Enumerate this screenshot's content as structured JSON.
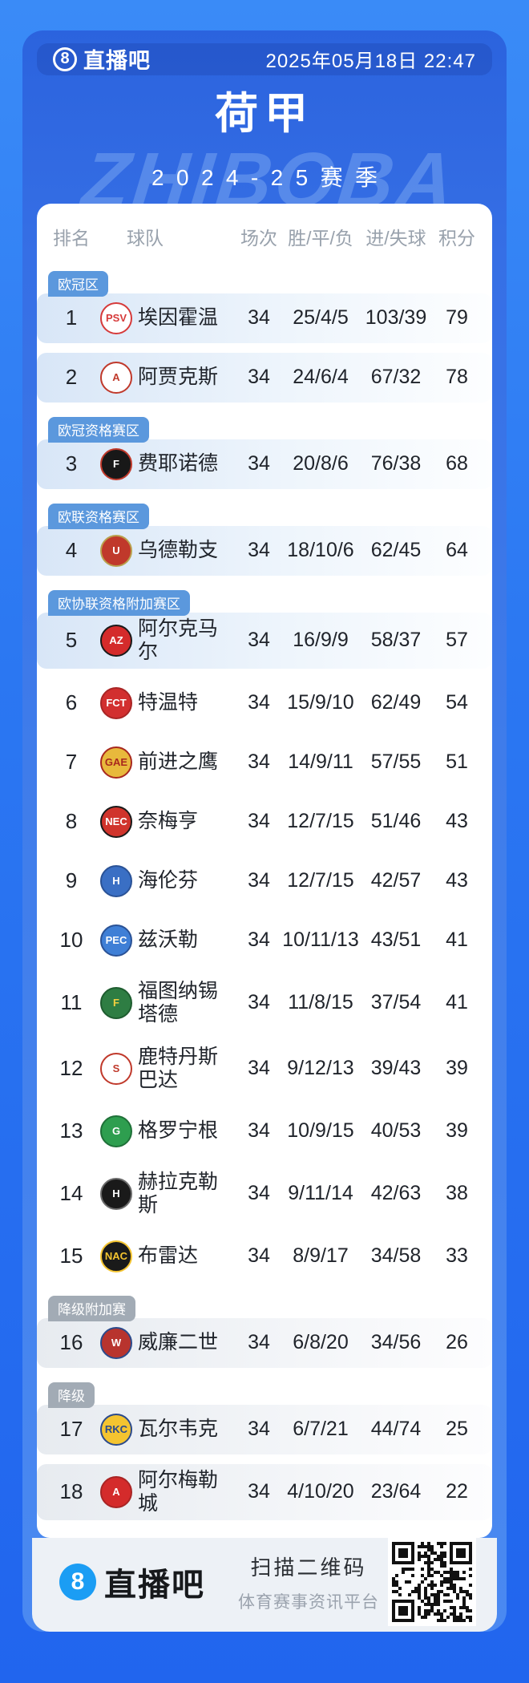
{
  "header": {
    "logo_badge": "8",
    "logo_text": "直播吧",
    "datetime": "2025年05月18日 22:47"
  },
  "title": "荷甲",
  "season": "2024-25赛季",
  "watermark": "ZHIBOBA",
  "table": {
    "columns": [
      "排名",
      "球队",
      "场次",
      "胜/平/负",
      "进/失球",
      "积分"
    ],
    "rows": [
      {
        "rank": "1",
        "name": "埃因霍温",
        "played": "34",
        "wdl": "25/4/5",
        "goals": "103/39",
        "points": "79",
        "zone": {
          "label": "欧冠区",
          "type": "europe"
        },
        "highlight": "blue",
        "logo": {
          "abbr": "PSV",
          "bg": "#ffffff",
          "color": "#d63a3a",
          "border": "#d63a3a"
        }
      },
      {
        "rank": "2",
        "name": "阿贾克斯",
        "played": "34",
        "wdl": "24/6/4",
        "goals": "67/32",
        "points": "78",
        "zone": null,
        "highlight": "blue",
        "logo": {
          "abbr": "A",
          "bg": "#ffffff",
          "color": "#c0392b",
          "border": "#c0392b"
        }
      },
      {
        "rank": "3",
        "name": "费耶诺德",
        "played": "34",
        "wdl": "20/8/6",
        "goals": "76/38",
        "points": "68",
        "zone": {
          "label": "欧冠资格赛区",
          "type": "europe"
        },
        "highlight": "blue",
        "logo": {
          "abbr": "F",
          "bg": "#181818",
          "color": "#ffffff",
          "border": "#c0392b"
        }
      },
      {
        "rank": "4",
        "name": "乌德勒支",
        "played": "34",
        "wdl": "18/10/6",
        "goals": "62/45",
        "points": "64",
        "zone": {
          "label": "欧联资格赛区",
          "type": "europe"
        },
        "highlight": "blue",
        "logo": {
          "abbr": "U",
          "bg": "#c0392b",
          "color": "#ffffff",
          "border": "#b9a04c"
        }
      },
      {
        "rank": "5",
        "name": "阿尔克马尔",
        "played": "34",
        "wdl": "16/9/9",
        "goals": "58/37",
        "points": "57",
        "zone": {
          "label": "欧协联资格附加赛区",
          "type": "europe"
        },
        "highlight": "blue",
        "logo": {
          "abbr": "AZ",
          "bg": "#d42b2b",
          "color": "#ffffff",
          "border": "#1a1a1a"
        }
      },
      {
        "rank": "6",
        "name": "特温特",
        "played": "34",
        "wdl": "15/9/10",
        "goals": "62/49",
        "points": "54",
        "zone": null,
        "highlight": null,
        "logo": {
          "abbr": "FCT",
          "bg": "#d22f2f",
          "color": "#ffffff",
          "border": "#a82525"
        }
      },
      {
        "rank": "7",
        "name": "前进之鹰",
        "played": "34",
        "wdl": "14/9/11",
        "goals": "57/55",
        "points": "51",
        "zone": null,
        "highlight": null,
        "logo": {
          "abbr": "GAE",
          "bg": "#e8b93c",
          "color": "#a8281e",
          "border": "#a8281e"
        }
      },
      {
        "rank": "8",
        "name": "奈梅亨",
        "played": "34",
        "wdl": "12/7/15",
        "goals": "51/46",
        "points": "43",
        "zone": null,
        "highlight": null,
        "logo": {
          "abbr": "NEC",
          "bg": "#d0342c",
          "color": "#ffffff",
          "border": "#1a1a1a"
        }
      },
      {
        "rank": "9",
        "name": "海伦芬",
        "played": "34",
        "wdl": "12/7/15",
        "goals": "42/57",
        "points": "43",
        "zone": null,
        "highlight": null,
        "logo": {
          "abbr": "H",
          "bg": "#3a6fc4",
          "color": "#ffffff",
          "border": "#2a5296"
        }
      },
      {
        "rank": "10",
        "name": "兹沃勒",
        "played": "34",
        "wdl": "10/11/13",
        "goals": "43/51",
        "points": "41",
        "zone": null,
        "highlight": null,
        "logo": {
          "abbr": "PEC",
          "bg": "#3f7fd6",
          "color": "#ffffff",
          "border": "#2a5296"
        }
      },
      {
        "rank": "11",
        "name": "福图纳锡塔德",
        "played": "34",
        "wdl": "11/8/15",
        "goals": "37/54",
        "points": "41",
        "zone": null,
        "highlight": null,
        "logo": {
          "abbr": "F",
          "bg": "#2e7d43",
          "color": "#f4d03f",
          "border": "#1e5c2f"
        }
      },
      {
        "rank": "12",
        "name": "鹿特丹斯巴达",
        "played": "34",
        "wdl": "9/12/13",
        "goals": "39/43",
        "points": "39",
        "zone": null,
        "highlight": null,
        "logo": {
          "abbr": "S",
          "bg": "#ffffff",
          "color": "#c0392b",
          "border": "#c0392b"
        }
      },
      {
        "rank": "13",
        "name": "格罗宁根",
        "played": "34",
        "wdl": "10/9/15",
        "goals": "40/53",
        "points": "39",
        "zone": null,
        "highlight": null,
        "logo": {
          "abbr": "G",
          "bg": "#2e9e4f",
          "color": "#ffffff",
          "border": "#1f7038"
        }
      },
      {
        "rank": "14",
        "name": "赫拉克勒斯",
        "played": "34",
        "wdl": "9/11/14",
        "goals": "42/63",
        "points": "38",
        "zone": null,
        "highlight": null,
        "logo": {
          "abbr": "H",
          "bg": "#1a1a1a",
          "color": "#ffffff",
          "border": "#6b6b6b"
        }
      },
      {
        "rank": "15",
        "name": "布雷达",
        "played": "34",
        "wdl": "8/9/17",
        "goals": "34/58",
        "points": "33",
        "zone": null,
        "highlight": null,
        "logo": {
          "abbr": "NAC",
          "bg": "#1a1a1a",
          "color": "#f4c430",
          "border": "#f4c430"
        }
      },
      {
        "rank": "16",
        "name": "威廉二世",
        "played": "34",
        "wdl": "6/8/20",
        "goals": "34/56",
        "points": "26",
        "zone": {
          "label": "降级附加赛",
          "type": "relegation"
        },
        "highlight": "gray",
        "logo": {
          "abbr": "W",
          "bg": "#b8342e",
          "color": "#ffffff",
          "border": "#2b4a8b"
        }
      },
      {
        "rank": "17",
        "name": "瓦尔韦克",
        "played": "34",
        "wdl": "6/7/21",
        "goals": "44/74",
        "points": "25",
        "zone": {
          "label": "降级",
          "type": "relegation"
        },
        "highlight": "gray",
        "logo": {
          "abbr": "RKC",
          "bg": "#f4c430",
          "color": "#2b4a8b",
          "border": "#2b4a8b"
        }
      },
      {
        "rank": "18",
        "name": "阿尔梅勒城",
        "played": "34",
        "wdl": "4/10/20",
        "goals": "23/64",
        "points": "22",
        "zone": null,
        "highlight": "gray",
        "logo": {
          "abbr": "A",
          "bg": "#d42b2b",
          "color": "#ffffff",
          "border": "#a82525"
        }
      }
    ]
  },
  "footer": {
    "logo_badge": "8",
    "logo_text": "直播吧",
    "scan_title": "扫描二维码",
    "scan_subtitle": "体育赛事资讯平台"
  }
}
